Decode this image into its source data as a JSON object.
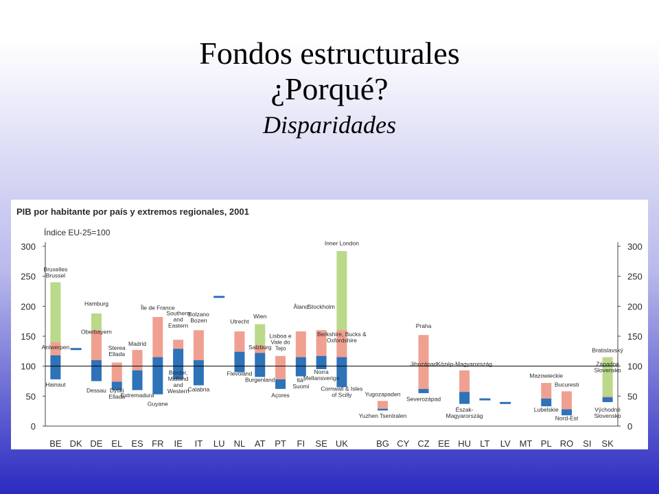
{
  "slide": {
    "title_line1": "Fondos estructurales",
    "title_line2": "¿Porqué?",
    "subtitle": "Disparidades"
  },
  "chart_data": {
    "type": "bar",
    "title": "PIB por habitante por país y extremos regionales, 2001",
    "ylabel": "Índice EU-25=100",
    "ylim": [
      0,
      300
    ],
    "yticks": [
      0,
      50,
      100,
      150,
      200,
      250,
      300
    ],
    "reference_line": 100,
    "colors": {
      "national": "#2e72b8",
      "high": "#f0a090",
      "highest": "#bad98a",
      "axis": "#444444",
      "line": "#000000"
    },
    "categories": [
      "BE",
      "DK",
      "DE",
      "EL",
      "ES",
      "FR",
      "IE",
      "IT",
      "LU",
      "NL",
      "AT",
      "PT",
      "FI",
      "SE",
      "UK",
      "",
      "BG",
      "CY",
      "CZ",
      "EE",
      "HU",
      "LT",
      "LV",
      "MT",
      "PL",
      "RO",
      "SI",
      "SK"
    ],
    "countries": [
      {
        "code": "BE",
        "min": 78,
        "national": 118,
        "high": 140,
        "max": 240
      },
      {
        "code": "DK",
        "national": 128
      },
      {
        "code": "DE",
        "min": 75,
        "national": 110,
        "high": 160,
        "max": 188
      },
      {
        "code": "EL",
        "min": 60,
        "national": 74,
        "max": 106
      },
      {
        "code": "ES",
        "min": 60,
        "national": 93,
        "max": 127
      },
      {
        "code": "FR",
        "min": 53,
        "national": 115,
        "max": 182
      },
      {
        "code": "IE",
        "min": 78,
        "national": 129,
        "max": 144
      },
      {
        "code": "IT",
        "min": 68,
        "national": 110,
        "max": 160
      },
      {
        "code": "LU",
        "national": 215
      },
      {
        "code": "NL",
        "min": 90,
        "national": 124,
        "max": 158
      },
      {
        "code": "AT",
        "min": 82,
        "national": 122,
        "high": 135,
        "max": 170
      },
      {
        "code": "PT",
        "min": 62,
        "national": 78,
        "max": 117
      },
      {
        "code": "FI",
        "min": 83,
        "national": 115,
        "max": 158
      },
      {
        "code": "SE",
        "min": 95,
        "national": 117,
        "max": 160
      },
      {
        "code": "UK",
        "min": 65,
        "national": 115,
        "high": 160,
        "max": 292
      },
      {
        "code": "BG",
        "min": 26,
        "national": 29,
        "max": 42
      },
      {
        "code": "CY",
        "national": 0
      },
      {
        "code": "CZ",
        "min": 55,
        "national": 62,
        "max": 152
      },
      {
        "code": "EE",
        "national": 0
      },
      {
        "code": "HU",
        "min": 37,
        "national": 57,
        "max": 93
      },
      {
        "code": "LT",
        "national": 44
      },
      {
        "code": "LV",
        "national": 38
      },
      {
        "code": "MT",
        "national": 0
      },
      {
        "code": "PL",
        "min": 33,
        "national": 46,
        "max": 72
      },
      {
        "code": "RO",
        "min": 18,
        "national": 28,
        "max": 58
      },
      {
        "code": "SI",
        "national": 0
      },
      {
        "code": "SK",
        "min": 40,
        "national": 48,
        "high": 50,
        "max": 115
      }
    ],
    "annotations": [
      {
        "country": "BE",
        "lines": [
          "Bruxelles",
          "Brussel"
        ],
        "value": 258
      },
      {
        "country": "BE",
        "lines": [
          "Antwerpen"
        ],
        "value": 128
      },
      {
        "country": "BE",
        "lines": [
          "Hainaut"
        ],
        "value": 66
      },
      {
        "country": "DE",
        "lines": [
          "Hamburg"
        ],
        "value": 201
      },
      {
        "country": "DE",
        "lines": [
          "Oberbayern"
        ],
        "value": 154
      },
      {
        "country": "DE",
        "lines": [
          "Dessau"
        ],
        "value": 56
      },
      {
        "country": "EL",
        "lines": [
          "Sterea",
          "Ellada"
        ],
        "value": 127
      },
      {
        "country": "EL",
        "lines": [
          "Dytiki",
          "Ellada"
        ],
        "value": 56
      },
      {
        "country": "ES",
        "lines": [
          "Madrid"
        ],
        "value": 134
      },
      {
        "country": "ES",
        "lines": [
          "Extremadura"
        ],
        "value": 48
      },
      {
        "country": "FR",
        "lines": [
          "Île de France"
        ],
        "value": 194
      },
      {
        "country": "FR",
        "lines": [
          "Guyane"
        ],
        "value": 34
      },
      {
        "country": "IE",
        "lines": [
          "Southern",
          "and",
          "Eastern"
        ],
        "value": 185
      },
      {
        "country": "IE",
        "lines": [
          "Border,",
          "Midland",
          "and",
          "Western"
        ],
        "value": 86
      },
      {
        "country": "IT",
        "lines": [
          "Bolzano",
          "Bozen"
        ],
        "value": 183
      },
      {
        "country": "IT",
        "lines": [
          "Calabria"
        ],
        "value": 58
      },
      {
        "country": "NL",
        "lines": [
          "Utrecht"
        ],
        "value": 171
      },
      {
        "country": "NL",
        "lines": [
          "Flevoland"
        ],
        "value": 84
      },
      {
        "country": "AT",
        "lines": [
          "Wien"
        ],
        "value": 180
      },
      {
        "country": "AT",
        "lines": [
          "Salzburg"
        ],
        "value": 128
      },
      {
        "country": "AT",
        "lines": [
          "Burgenland"
        ],
        "value": 74
      },
      {
        "country": "PT",
        "lines": [
          "Lisboa e",
          "Vale do",
          "Tejo"
        ],
        "value": 147
      },
      {
        "country": "PT",
        "lines": [
          "Açores"
        ],
        "value": 48
      },
      {
        "country": "FI",
        "lines": [
          "Åland"
        ],
        "value": 196
      },
      {
        "country": "FI",
        "lines": [
          "Itä-",
          "Suomi"
        ],
        "value": 73
      },
      {
        "country": "SE",
        "lines": [
          "Stockholm"
        ],
        "value": 196
      },
      {
        "country": "SE",
        "lines": [
          "Norra",
          "Mellansverige"
        ],
        "value": 87
      },
      {
        "country": "UK",
        "lines": [
          "Inner London"
        ],
        "value": 302
      },
      {
        "country": "UK",
        "lines": [
          "Berkshire, Bucks &",
          "Oxfordshire"
        ],
        "value": 150
      },
      {
        "country": "UK",
        "lines": [
          "Cornwall & Isles",
          "of Scilly"
        ],
        "value": 59
      },
      {
        "country": "BG",
        "lines": [
          "Yugozapaden"
        ],
        "value": 50
      },
      {
        "country": "BG",
        "lines": [
          "Yuzhen Tsentralen"
        ],
        "value": 14
      },
      {
        "country": "CZ",
        "lines": [
          "Praha"
        ],
        "value": 164
      },
      {
        "country": "CZ",
        "lines": [
          "Jihozápad"
        ],
        "value": 100
      },
      {
        "country": "CZ",
        "lines": [
          "Severozápad"
        ],
        "value": 42
      },
      {
        "country": "HU",
        "lines": [
          "Közép-Magyarország"
        ],
        "value": 100
      },
      {
        "country": "HU",
        "lines": [
          "Észak-",
          "Magyarország"
        ],
        "value": 24
      },
      {
        "country": "PL",
        "lines": [
          "Mazowieckie"
        ],
        "value": 81
      },
      {
        "country": "PL",
        "lines": [
          "Lubelskie"
        ],
        "value": 24
      },
      {
        "country": "RO",
        "lines": [
          "Bucuresti"
        ],
        "value": 66
      },
      {
        "country": "RO",
        "lines": [
          "Nord-Est"
        ],
        "value": 10
      },
      {
        "country": "SK",
        "lines": [
          "Bratislavský"
        ],
        "value": 123
      },
      {
        "country": "SK",
        "lines": [
          "Západné",
          "Slovensko"
        ],
        "value": 100
      },
      {
        "country": "SK",
        "lines": [
          "Východné",
          "Slovensko"
        ],
        "value": 24
      }
    ]
  }
}
